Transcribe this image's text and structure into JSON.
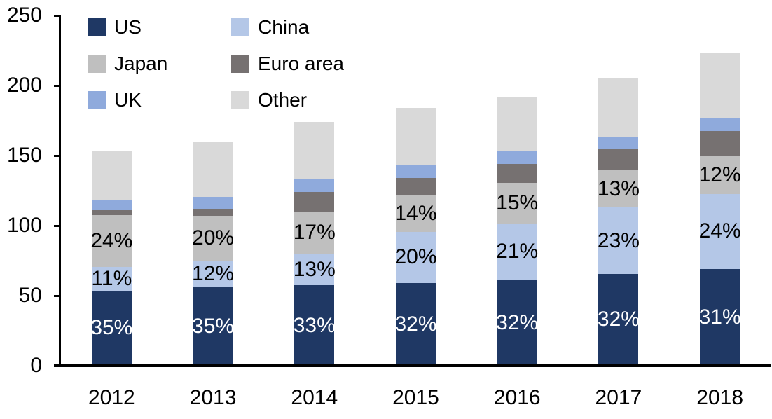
{
  "background": "#ffffff",
  "axis_color": "#000000",
  "chart_data": {
    "type": "bar",
    "stacked": true,
    "title": "",
    "xlabel": "",
    "ylabel": "",
    "grid": false,
    "ylim": [
      0,
      250
    ],
    "yticks": [
      "0",
      "50",
      "100",
      "150",
      "200",
      "250"
    ],
    "ytick_values": [
      0,
      50,
      100,
      150,
      200,
      250
    ],
    "categories": [
      "2012",
      "2013",
      "2014",
      "2015",
      "2016",
      "2017",
      "2018"
    ],
    "totals": [
      153.5,
      160.0,
      174.0,
      184.0,
      192.0,
      205.0,
      223.0
    ],
    "legend_position": "top-left",
    "legend_columns": 2,
    "series": [
      {
        "name": "US",
        "color": "#1f3864",
        "values": [
          53.7,
          56.0,
          57.4,
          58.9,
          61.4,
          65.6,
          69.1
        ],
        "percent_labels": [
          "35%",
          "35%",
          "33%",
          "32%",
          "32%",
          "32%",
          "31%"
        ],
        "label_color": "#ffffff"
      },
      {
        "name": "China",
        "color": "#b4c7e7",
        "values": [
          16.9,
          19.2,
          22.6,
          36.8,
          40.3,
          47.2,
          53.5
        ],
        "percent_labels": [
          "11%",
          "12%",
          "13%",
          "20%",
          "21%",
          "23%",
          "24%"
        ],
        "label_color": "#000000"
      },
      {
        "name": "Japan",
        "color": "#bfbfbf",
        "values": [
          36.8,
          32.0,
          29.6,
          25.8,
          28.8,
          26.7,
          26.8
        ],
        "percent_labels": [
          "24%",
          "20%",
          "17%",
          "14%",
          "15%",
          "13%",
          "12%"
        ],
        "label_color": "#000000"
      },
      {
        "name": "Euro area",
        "color": "#767171",
        "values": [
          3.5,
          4.5,
          14.5,
          12.4,
          13.7,
          15.2,
          18.3
        ],
        "percent_labels": null,
        "label_color": "#000000"
      },
      {
        "name": "UK",
        "color": "#8faadc",
        "values": [
          7.7,
          9.0,
          9.2,
          9.2,
          9.1,
          8.8,
          9.1
        ],
        "percent_labels": null,
        "label_color": "#000000"
      },
      {
        "name": "Other",
        "color": "#d9d9d9",
        "values": [
          34.9,
          39.3,
          40.7,
          40.9,
          38.7,
          41.5,
          46.2
        ],
        "percent_labels": null,
        "label_color": "#000000"
      }
    ]
  }
}
